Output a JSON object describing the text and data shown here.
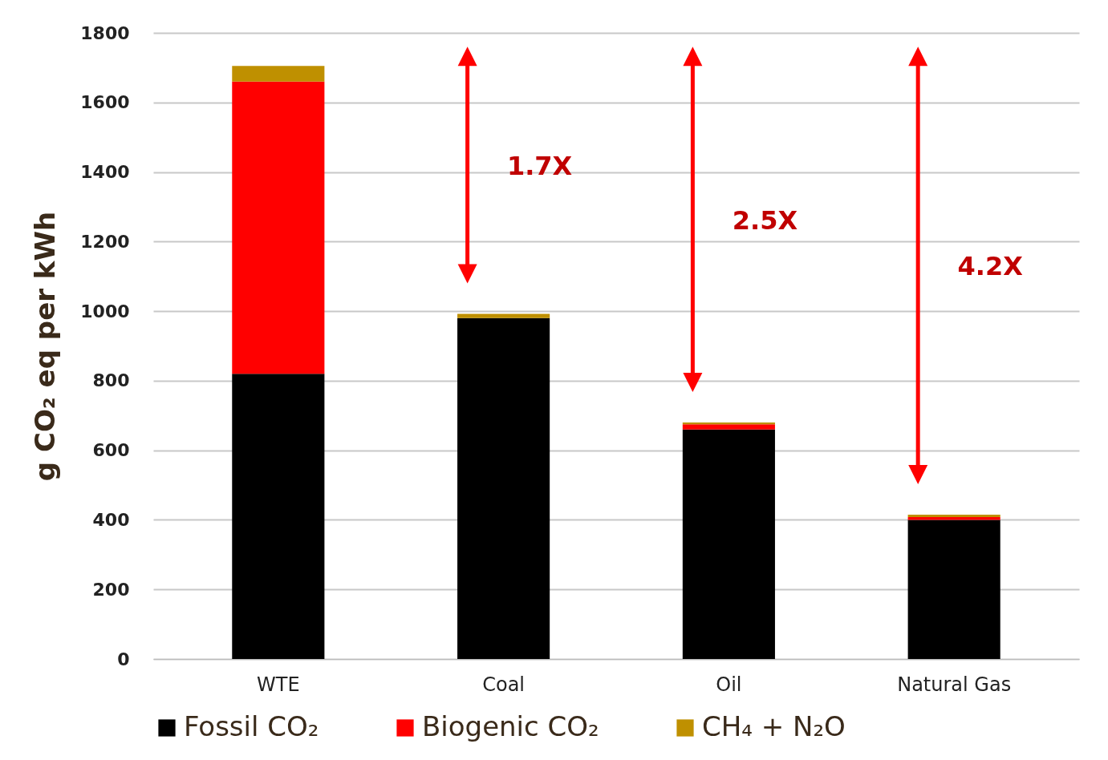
{
  "chart_data": {
    "type": "bar",
    "stacked": true,
    "ylabel": "g CO₂ eq per kWh",
    "categories": [
      "WTE",
      "Coal",
      "Oil",
      "Natural Gas"
    ],
    "series": [
      {
        "name": "Fossil CO₂",
        "color": "#000000",
        "values": [
          820,
          980,
          660,
          400
        ]
      },
      {
        "name": "Biogenic CO₂",
        "color": "#ff0000",
        "values": [
          840,
          0,
          15,
          8
        ]
      },
      {
        "name": "CH₄ + N₂O",
        "color": "#bf9000",
        "values": [
          45,
          12,
          5,
          7
        ]
      }
    ],
    "ylim": [
      0,
      1800
    ],
    "yticks": [
      0,
      200,
      400,
      600,
      800,
      1000,
      1200,
      1400,
      1600,
      1800
    ],
    "grid": "y",
    "legend": "bottom",
    "annotations": [
      "1.7X",
      "2.5X",
      "4.2X"
    ]
  }
}
